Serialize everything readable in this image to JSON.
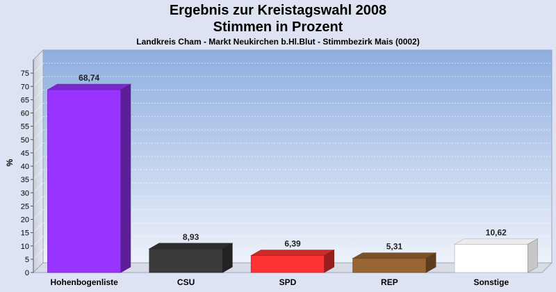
{
  "chart_data": {
    "type": "bar",
    "title": "Ergebnis zur Kreistagswahl 2008",
    "title_line2": "Stimmen in Prozent",
    "subtitle": "Landkreis Cham - Markt Neukirchen b.Hl.Blut - Stimmbezirk Mais (0002)",
    "ylabel": "%",
    "xlabel": "",
    "ylim": [
      0,
      80
    ],
    "yticks": [
      0,
      5,
      10,
      15,
      20,
      25,
      30,
      35,
      40,
      45,
      50,
      55,
      60,
      65,
      70,
      75
    ],
    "grid": true,
    "categories": [
      "Hohenbogenliste",
      "CSU",
      "SPD",
      "REP",
      "Sonstige"
    ],
    "values": [
      68.74,
      8.93,
      6.39,
      5.31,
      10.62
    ],
    "value_labels": [
      "68,74",
      "8,93",
      "6,39",
      "5,31",
      "10,62"
    ],
    "colors": [
      "#9933ff",
      "#3a3a3a",
      "#ff3333",
      "#996633",
      "#ffffff"
    ]
  }
}
